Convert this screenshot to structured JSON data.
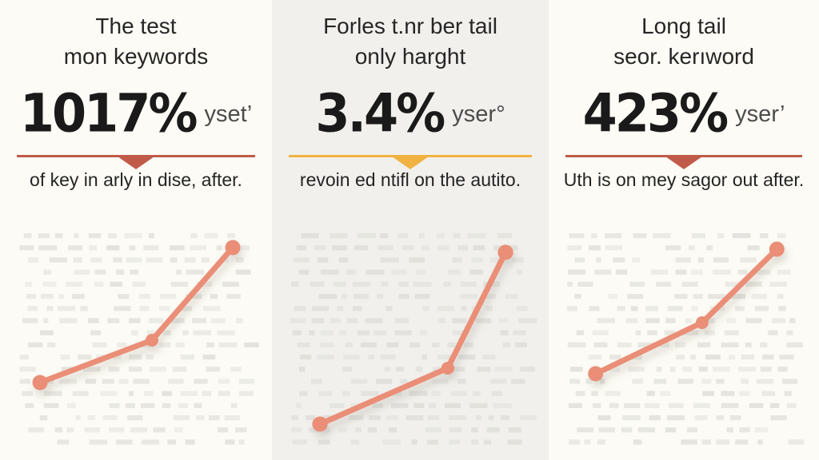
{
  "panels": [
    {
      "title_line1": "The test",
      "title_line2": "mon keywords",
      "stat_value": "1017%",
      "stat_suffix": "yset’",
      "subtitle": "of key in arly in dise, after.",
      "bg": "#fcfbf5",
      "divider_color": "#c15b49",
      "line_color": "#ea8e77",
      "dot_color": "#e2e1dc",
      "chart": {
        "points": [
          [
            50,
            205
          ],
          [
            190,
            152
          ],
          [
            291,
            36
          ]
        ]
      }
    },
    {
      "title_line1": "Forles t.nr ber tail",
      "title_line2": "only harght",
      "stat_value": "3.4%",
      "stat_suffix": "yser°",
      "subtitle": "revoin ed ntifl on the autito.",
      "bg": "#f1f0ec",
      "divider_color": "#f0b342",
      "line_color": "#ea8e77",
      "dot_color": "#dfdeda",
      "chart": {
        "points": [
          [
            59,
            257
          ],
          [
            216,
            187
          ],
          [
            287,
            42
          ]
        ]
      }
    },
    {
      "title_line1": "Long tail",
      "title_line2": "seor. kerıword",
      "stat_value": "423%",
      "stat_suffix": "yser’",
      "subtitle": "Uth is on mey sagor out after.",
      "bg": "#fcfbf5",
      "divider_color": "#c15b49",
      "line_color": "#ea8e77",
      "dot_color": "#e2e1dc",
      "chart": {
        "points": [
          [
            59,
            194
          ],
          [
            193,
            130
          ],
          [
            287,
            38
          ]
        ]
      }
    }
  ],
  "chart_data": [
    {
      "type": "line",
      "title": "The test mon keywords",
      "stat_label": "1017% yset’",
      "x_rel": [
        0.15,
        0.56,
        0.86
      ],
      "y_rel_from_bottom": [
        0.31,
        0.49,
        0.88
      ],
      "axes": "none",
      "grid": "dotted-dash background, no axes or tick labels",
      "line_color": "#ea8e77"
    },
    {
      "type": "line",
      "title": "Forles t.nr ber tail only harght",
      "stat_label": "3.4% yser°",
      "x_rel": [
        0.17,
        0.62,
        0.83
      ],
      "y_rel_from_bottom": [
        0.14,
        0.37,
        0.86
      ],
      "axes": "none",
      "grid": "dotted-dash background, no axes or tick labels",
      "line_color": "#ea8e77"
    },
    {
      "type": "line",
      "title": "Long tail seor. kerıword",
      "stat_label": "423% yser’",
      "x_rel": [
        0.17,
        0.57,
        0.84
      ],
      "y_rel_from_bottom": [
        0.35,
        0.57,
        0.87
      ],
      "axes": "none",
      "grid": "dotted-dash background, no axes or tick labels",
      "line_color": "#ea8e77"
    }
  ]
}
